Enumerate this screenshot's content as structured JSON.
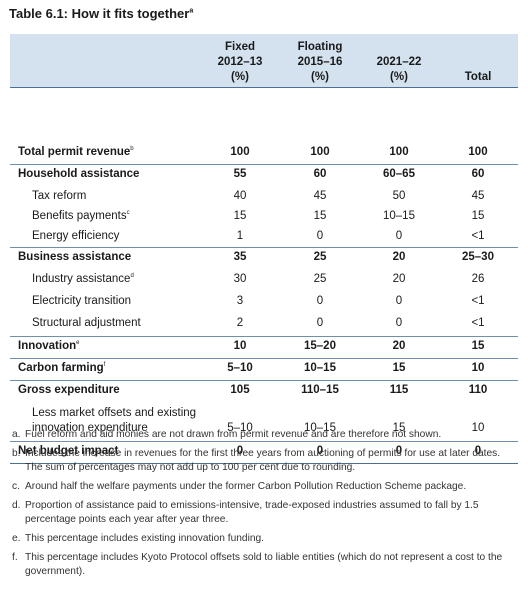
{
  "title": {
    "text": "Table 6.1: How it fits together",
    "sup": "a"
  },
  "columns": [
    {
      "line1": "Fixed",
      "line2": "2012–13",
      "line3": "(%)"
    },
    {
      "line1": "Floating",
      "line2": "2015–16",
      "line3": "(%)"
    },
    {
      "line1": "",
      "line2": "2021–22",
      "line3": "(%)"
    },
    {
      "line1": "",
      "line2": "",
      "line3": "Total"
    }
  ],
  "rows": [
    {
      "label": "Total permit revenue",
      "sup": "b",
      "v": [
        "100",
        "100",
        "100",
        "100"
      ]
    },
    {
      "label": "Household assistance",
      "sup": "",
      "v": [
        "55",
        "60",
        "60–65",
        "60"
      ]
    },
    {
      "label": "Tax reform",
      "sup": "",
      "v": [
        "40",
        "45",
        "50",
        "45"
      ]
    },
    {
      "label": "Benefits payments",
      "sup": "c",
      "v": [
        "15",
        "15",
        "10–15",
        "15"
      ]
    },
    {
      "label": "Energy efficiency",
      "sup": "",
      "v": [
        "1",
        "0",
        "0",
        "<1"
      ]
    },
    {
      "label": "Business assistance",
      "sup": "",
      "v": [
        "35",
        "25",
        "20",
        "25–30"
      ]
    },
    {
      "label": "Industry assistance",
      "sup": "d",
      "v": [
        "30",
        "25",
        "20",
        "26"
      ]
    },
    {
      "label": "Electricity transition",
      "sup": "",
      "v": [
        "3",
        "0",
        "0",
        "<1"
      ]
    },
    {
      "label": "Structural adjustment",
      "sup": "",
      "v": [
        "2",
        "0",
        "0",
        "<1"
      ]
    },
    {
      "label": "Innovation",
      "sup": "e",
      "v": [
        "10",
        "15–20",
        "20",
        "15"
      ]
    },
    {
      "label": "Carbon farming",
      "sup": "f",
      "v": [
        "5–10",
        "10–15",
        "15",
        "10"
      ]
    },
    {
      "label": "Gross expenditure",
      "sup": "",
      "v": [
        "105",
        "110–15",
        "115",
        "110"
      ]
    },
    {
      "label1": "Less market offsets and existing",
      "label2": "innovation expenditure",
      "v": [
        "5–10",
        "10–15",
        "15",
        "10"
      ]
    },
    {
      "label": "Net budget impact",
      "sup": "",
      "v": [
        "0",
        "0",
        "0",
        "0"
      ]
    }
  ],
  "notes": [
    {
      "key": "a.",
      "text": "Fuel reform and aid monies are not drawn from permit revenue and are therefore not shown."
    },
    {
      "key": "b.",
      "text": "Includes the increase in revenues for the first three years from auctioning of permits for use at later dates. The sum of percentages may not add up to 100 per cent due to rounding."
    },
    {
      "key": "c.",
      "text": "Around half the welfare payments under the former Carbon Pollution Reduction Scheme package."
    },
    {
      "key": "d.",
      "text": "Proportion of assistance paid to emissions-intensive, trade-exposed industries assumed to fall by 1.5 percentage points each year after year three."
    },
    {
      "key": "e.",
      "text": "This percentage includes existing innovation funding."
    },
    {
      "key": "f.",
      "text": "This percentage includes Kyoto Protocol offsets sold to liable entities (which do not represent a cost to the government)."
    }
  ]
}
